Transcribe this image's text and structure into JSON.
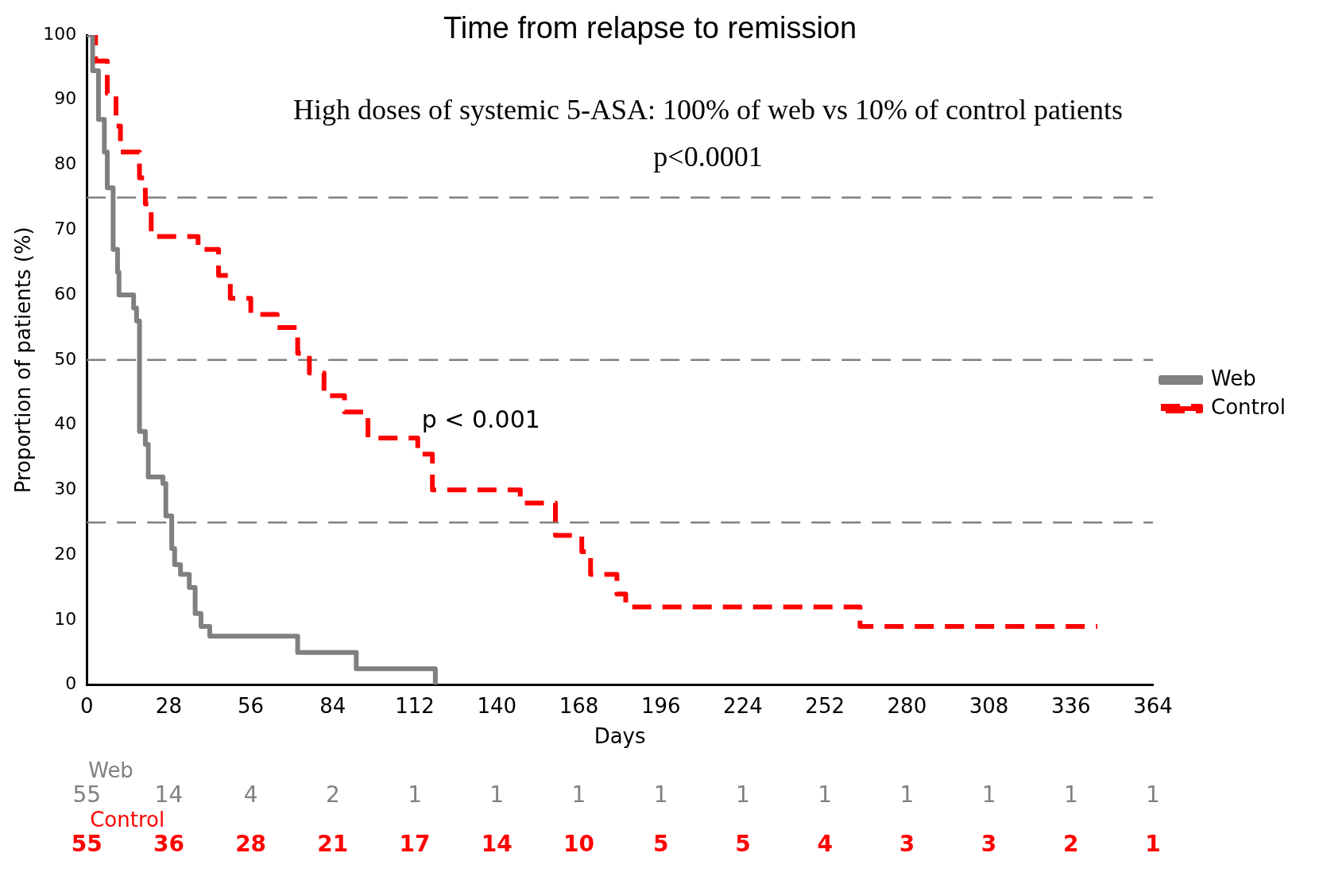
{
  "chart_data": {
    "type": "step",
    "title": "Time from relapse to remission",
    "subtitle": "High doses of systemic 5-ASA: 100% of web vs 10% of control patients",
    "xlabel": "Days",
    "ylabel": "Proportion of patients (%)",
    "series": [
      {
        "name": "Web",
        "color": "#808080",
        "line_style": "solid",
        "x": [
          0,
          2,
          4,
          6,
          7,
          9,
          10.5,
          11,
          16,
          17,
          18,
          20,
          21,
          26,
          27,
          29,
          30,
          32,
          35,
          37,
          39,
          42,
          72,
          92,
          119
        ],
        "values": [
          100,
          94.5,
          87,
          82,
          76.5,
          67,
          63.5,
          60,
          58,
          56,
          39,
          37,
          32,
          31,
          26,
          21,
          18.5,
          17,
          15,
          11,
          9,
          7.5,
          5,
          2.5,
          0
        ]
      },
      {
        "name": "Control",
        "color": "#ff0000",
        "line_style": "dashed",
        "x": [
          0,
          3,
          7,
          10,
          11.5,
          18,
          20,
          22,
          38,
          45,
          49,
          56,
          65,
          72,
          76,
          81,
          88,
          96,
          113,
          118,
          148,
          160,
          169,
          172,
          181,
          184,
          264,
          345
        ],
        "values": [
          100,
          96,
          91,
          86,
          82,
          78,
          74,
          69,
          67,
          63,
          59.5,
          57,
          55,
          51,
          48,
          44.5,
          42,
          38,
          35.5,
          30,
          28,
          23,
          20.5,
          17,
          14,
          12,
          9,
          9
        ]
      }
    ],
    "xlim": [
      0,
      364
    ],
    "xticks": [
      0,
      28,
      56,
      84,
      112,
      140,
      168,
      196,
      224,
      252,
      280,
      308,
      336,
      364
    ],
    "ylim": [
      0,
      100
    ],
    "yticks": [
      0,
      10,
      20,
      30,
      40,
      50,
      60,
      70,
      80,
      90,
      100
    ],
    "ref_lines": [
      {
        "axis": "y",
        "value": 75,
        "color": "#808080",
        "line_style": "dashed"
      },
      {
        "axis": "y",
        "value": 50,
        "color": "#808080",
        "line_style": "dashed"
      },
      {
        "axis": "y",
        "value": 25,
        "color": "#808080",
        "line_style": "dashed"
      }
    ],
    "annotations": [
      "p<0.0001",
      "p < 0.001",
      "Web",
      "55 14 4 2 1 1 1 1 1 1 1 1 1 1",
      "Control",
      "55 36 28 21 17 14 10 5 5 4 3 3 2 1"
    ],
    "grid": false,
    "legend": "right",
    "marker": "none"
  }
}
